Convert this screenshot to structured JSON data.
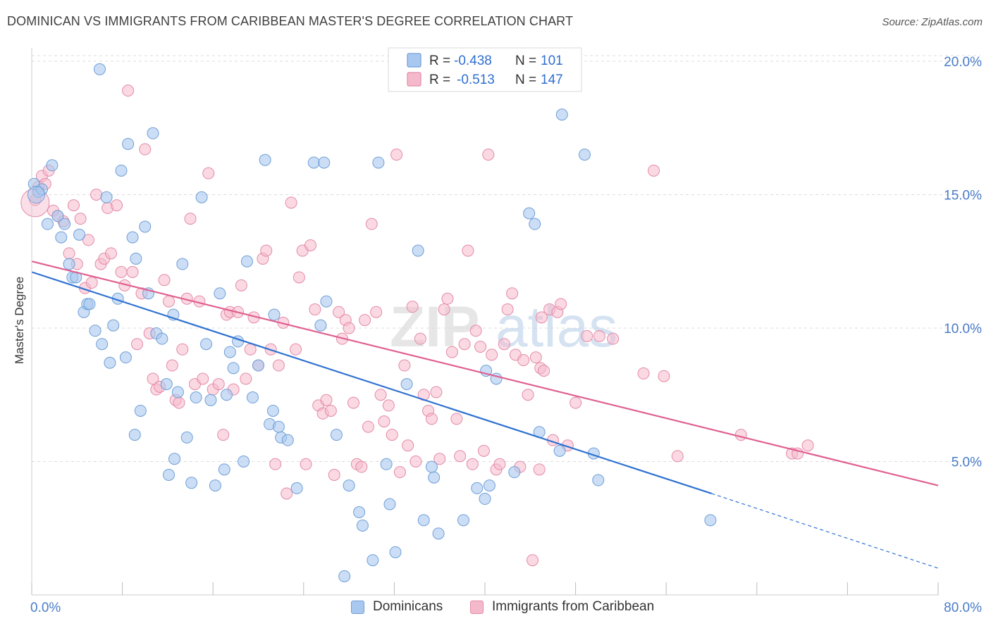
{
  "title": "DOMINICAN VS IMMIGRANTS FROM CARIBBEAN MASTER'S DEGREE CORRELATION CHART",
  "source": "Source: ZipAtlas.com",
  "watermark": {
    "part1": "ZIP",
    "part2": "atlas"
  },
  "colors": {
    "blue_fill": "#a9c8ef",
    "blue_stroke": "#6f9fd8",
    "blue_line": "#2f72d0",
    "pink_fill": "#f5b9cc",
    "pink_stroke": "#e48aa8",
    "pink_line": "#e06090",
    "tick_label": "#4a7cc8",
    "grid": "#dcdcdc"
  },
  "legend": {
    "r_label": "R =",
    "n_label": "N =",
    "entries": [
      {
        "r": "-0.438",
        "n": "101"
      },
      {
        "r": "-0.513",
        "n": "147"
      }
    ]
  },
  "chart_data": {
    "type": "scatter",
    "title": "DOMINICAN VS IMMIGRANTS FROM CARIBBEAN MASTER'S DEGREE CORRELATION CHART",
    "xlabel": "",
    "ylabel": "Master's Degree",
    "xlim": [
      0,
      80
    ],
    "ylim": [
      0,
      20.5
    ],
    "x_tick_labels": [
      "0.0%",
      "80.0%"
    ],
    "y_ticks": [
      5,
      10,
      15,
      20
    ],
    "y_tick_labels": [
      "5.0%",
      "10.0%",
      "15.0%",
      "20.0%"
    ],
    "grid": "horizontal dashed",
    "legend_position": "top-center",
    "series": [
      {
        "name": "Dominicans",
        "r": -0.438,
        "n": 101,
        "trend": {
          "x": [
            0,
            60,
            80
          ],
          "y": [
            12.1,
            3.8,
            1.0
          ],
          "solid_until": 60
        },
        "points": [
          [
            0.2,
            15.4
          ],
          [
            0.6,
            15.1
          ],
          [
            0.9,
            15.2
          ],
          [
            1.4,
            13.9
          ],
          [
            1.8,
            16.1
          ],
          [
            2.3,
            14.2
          ],
          [
            2.6,
            13.4
          ],
          [
            2.9,
            13.9
          ],
          [
            3.3,
            12.4
          ],
          [
            3.6,
            11.9
          ],
          [
            3.9,
            11.9
          ],
          [
            4.2,
            13.5
          ],
          [
            4.6,
            10.6
          ],
          [
            4.9,
            10.9
          ],
          [
            5.1,
            10.9
          ],
          [
            5.6,
            9.9
          ],
          [
            6.2,
            9.4
          ],
          [
            6.6,
            14.9
          ],
          [
            6.9,
            8.7
          ],
          [
            7.2,
            10.1
          ],
          [
            6.0,
            19.7
          ],
          [
            7.6,
            11.1
          ],
          [
            7.9,
            15.9
          ],
          [
            8.3,
            8.9
          ],
          [
            8.5,
            16.9
          ],
          [
            8.9,
            13.4
          ],
          [
            9.2,
            12.6
          ],
          [
            9.6,
            6.9
          ],
          [
            10.0,
            13.8
          ],
          [
            10.3,
            11.3
          ],
          [
            10.7,
            17.3
          ],
          [
            11.0,
            9.8
          ],
          [
            11.5,
            9.6
          ],
          [
            11.9,
            7.9
          ],
          [
            12.1,
            4.5
          ],
          [
            12.5,
            10.5
          ],
          [
            12.9,
            7.6
          ],
          [
            13.3,
            12.4
          ],
          [
            13.7,
            5.9
          ],
          [
            14.1,
            4.2
          ],
          [
            14.5,
            7.4
          ],
          [
            15.0,
            14.9
          ],
          [
            15.4,
            9.4
          ],
          [
            15.8,
            7.3
          ],
          [
            16.2,
            4.1
          ],
          [
            16.6,
            11.3
          ],
          [
            17.0,
            4.7
          ],
          [
            17.5,
            9.1
          ],
          [
            17.8,
            8.5
          ],
          [
            18.2,
            9.5
          ],
          [
            18.7,
            5.0
          ],
          [
            19.0,
            12.5
          ],
          [
            19.5,
            7.4
          ],
          [
            20.0,
            8.6
          ],
          [
            20.6,
            16.3
          ],
          [
            21.0,
            6.4
          ],
          [
            21.3,
            6.9
          ],
          [
            21.8,
            6.3
          ],
          [
            22.0,
            5.9
          ],
          [
            22.6,
            5.8
          ],
          [
            23.4,
            4.0
          ],
          [
            24.9,
            16.2
          ],
          [
            25.5,
            10.1
          ],
          [
            25.8,
            16.2
          ],
          [
            26.9,
            6.0
          ],
          [
            28.0,
            4.1
          ],
          [
            28.9,
            3.1
          ],
          [
            29.2,
            2.6
          ],
          [
            30.1,
            1.3
          ],
          [
            30.6,
            16.2
          ],
          [
            31.3,
            4.9
          ],
          [
            31.6,
            3.4
          ],
          [
            32.1,
            1.6
          ],
          [
            33.1,
            7.9
          ],
          [
            34.1,
            12.9
          ],
          [
            34.6,
            2.8
          ],
          [
            35.3,
            4.8
          ],
          [
            35.5,
            4.4
          ],
          [
            35.9,
            2.3
          ],
          [
            38.1,
            2.8
          ],
          [
            39.3,
            4.0
          ],
          [
            40.0,
            3.6
          ],
          [
            40.1,
            8.4
          ],
          [
            40.4,
            4.1
          ],
          [
            41.0,
            8.1
          ],
          [
            42.6,
            4.6
          ],
          [
            43.9,
            14.3
          ],
          [
            44.4,
            13.9
          ],
          [
            44.8,
            6.1
          ],
          [
            46.6,
            5.4
          ],
          [
            46.8,
            18.0
          ],
          [
            48.8,
            16.5
          ],
          [
            49.6,
            5.3
          ],
          [
            50.0,
            4.3
          ],
          [
            59.9,
            2.8
          ],
          [
            17.2,
            7.5
          ],
          [
            12.6,
            5.1
          ],
          [
            27.6,
            0.7
          ],
          [
            21.4,
            10.5
          ],
          [
            26.0,
            11.0
          ],
          [
            9.1,
            6.0
          ]
        ]
      },
      {
        "name": "Immigrants from Caribbean",
        "r": -0.513,
        "n": 147,
        "trend": {
          "x": [
            0,
            80
          ],
          "y": [
            12.5,
            4.1
          ],
          "solid_until": 80
        },
        "points": [
          [
            0.3,
            14.8
          ],
          [
            0.6,
            15.3
          ],
          [
            0.9,
            15.7
          ],
          [
            1.2,
            15.4
          ],
          [
            1.5,
            15.9
          ],
          [
            1.9,
            14.4
          ],
          [
            2.3,
            14.2
          ],
          [
            2.8,
            14.0
          ],
          [
            3.3,
            12.8
          ],
          [
            3.7,
            14.6
          ],
          [
            4.0,
            12.4
          ],
          [
            4.3,
            14.1
          ],
          [
            4.7,
            11.5
          ],
          [
            5.0,
            13.3
          ],
          [
            5.3,
            11.7
          ],
          [
            5.7,
            15.0
          ],
          [
            6.1,
            12.4
          ],
          [
            6.4,
            12.6
          ],
          [
            6.7,
            14.5
          ],
          [
            7.0,
            12.8
          ],
          [
            7.5,
            14.6
          ],
          [
            7.9,
            12.1
          ],
          [
            8.2,
            11.6
          ],
          [
            8.5,
            18.9
          ],
          [
            8.9,
            12.1
          ],
          [
            9.3,
            9.4
          ],
          [
            9.7,
            11.3
          ],
          [
            10.0,
            16.7
          ],
          [
            10.4,
            9.8
          ],
          [
            10.7,
            8.1
          ],
          [
            11.0,
            7.7
          ],
          [
            11.3,
            7.8
          ],
          [
            11.7,
            11.8
          ],
          [
            12.1,
            11.0
          ],
          [
            12.4,
            8.6
          ],
          [
            12.7,
            7.3
          ],
          [
            13.0,
            7.2
          ],
          [
            13.3,
            9.2
          ],
          [
            13.7,
            11.1
          ],
          [
            14.0,
            14.1
          ],
          [
            14.4,
            7.9
          ],
          [
            14.8,
            11.0
          ],
          [
            15.1,
            8.1
          ],
          [
            15.6,
            15.8
          ],
          [
            16.0,
            7.7
          ],
          [
            16.5,
            7.9
          ],
          [
            16.9,
            6.0
          ],
          [
            17.2,
            10.5
          ],
          [
            17.5,
            10.6
          ],
          [
            17.8,
            7.7
          ],
          [
            18.2,
            10.6
          ],
          [
            18.5,
            11.6
          ],
          [
            18.9,
            8.1
          ],
          [
            19.3,
            9.2
          ],
          [
            19.6,
            10.4
          ],
          [
            20.0,
            8.6
          ],
          [
            20.4,
            12.6
          ],
          [
            20.7,
            12.9
          ],
          [
            21.1,
            9.2
          ],
          [
            21.5,
            4.9
          ],
          [
            21.8,
            8.6
          ],
          [
            22.2,
            10.2
          ],
          [
            22.5,
            3.8
          ],
          [
            22.9,
            14.7
          ],
          [
            23.3,
            9.2
          ],
          [
            23.6,
            11.9
          ],
          [
            23.9,
            12.9
          ],
          [
            24.2,
            4.9
          ],
          [
            24.6,
            13.1
          ],
          [
            25.0,
            10.7
          ],
          [
            25.3,
            7.1
          ],
          [
            25.7,
            6.8
          ],
          [
            26.0,
            7.3
          ],
          [
            26.4,
            6.9
          ],
          [
            26.7,
            4.5
          ],
          [
            27.1,
            10.6
          ],
          [
            27.4,
            9.6
          ],
          [
            27.7,
            10.3
          ],
          [
            28.0,
            10.0
          ],
          [
            28.4,
            7.2
          ],
          [
            28.7,
            4.9
          ],
          [
            29.1,
            4.8
          ],
          [
            29.4,
            10.3
          ],
          [
            29.7,
            6.3
          ],
          [
            30.0,
            13.9
          ],
          [
            30.4,
            10.6
          ],
          [
            30.8,
            7.5
          ],
          [
            31.1,
            6.5
          ],
          [
            31.5,
            7.1
          ],
          [
            31.8,
            6.0
          ],
          [
            32.2,
            16.5
          ],
          [
            32.5,
            4.6
          ],
          [
            32.9,
            8.6
          ],
          [
            33.2,
            5.6
          ],
          [
            33.6,
            10.8
          ],
          [
            33.9,
            5.0
          ],
          [
            34.3,
            9.6
          ],
          [
            34.6,
            7.5
          ],
          [
            35.0,
            6.9
          ],
          [
            35.3,
            6.6
          ],
          [
            35.7,
            7.6
          ],
          [
            36.0,
            5.1
          ],
          [
            36.4,
            10.7
          ],
          [
            36.7,
            11.1
          ],
          [
            37.1,
            9.1
          ],
          [
            37.5,
            6.6
          ],
          [
            37.8,
            5.2
          ],
          [
            38.2,
            9.4
          ],
          [
            38.5,
            12.9
          ],
          [
            38.9,
            4.9
          ],
          [
            39.2,
            9.9
          ],
          [
            39.6,
            9.3
          ],
          [
            39.9,
            5.4
          ],
          [
            40.3,
            16.5
          ],
          [
            40.6,
            9.0
          ],
          [
            41.0,
            4.7
          ],
          [
            41.3,
            4.9
          ],
          [
            41.7,
            9.4
          ],
          [
            42.0,
            10.7
          ],
          [
            42.4,
            11.3
          ],
          [
            42.7,
            9.0
          ],
          [
            43.1,
            4.8
          ],
          [
            43.4,
            8.8
          ],
          [
            43.8,
            7.5
          ],
          [
            44.2,
            1.3
          ],
          [
            44.5,
            8.9
          ],
          [
            44.9,
            8.5
          ],
          [
            45.2,
            8.4
          ],
          [
            45.7,
            10.7
          ],
          [
            46.0,
            5.8
          ],
          [
            46.4,
            10.6
          ],
          [
            46.7,
            10.9
          ],
          [
            47.3,
            5.6
          ],
          [
            48.0,
            7.2
          ],
          [
            49.0,
            9.7
          ],
          [
            50.1,
            9.7
          ],
          [
            51.3,
            9.6
          ],
          [
            54.0,
            8.3
          ],
          [
            54.9,
            15.9
          ],
          [
            55.8,
            8.2
          ],
          [
            57.0,
            5.2
          ],
          [
            62.6,
            6.0
          ],
          [
            67.1,
            5.3
          ],
          [
            67.6,
            5.3
          ],
          [
            68.5,
            5.6
          ],
          [
            44.8,
            4.7
          ],
          [
            45.0,
            10.4
          ]
        ]
      }
    ]
  },
  "bottom_legend": [
    "Dominicans",
    "Immigrants from Caribbean"
  ]
}
